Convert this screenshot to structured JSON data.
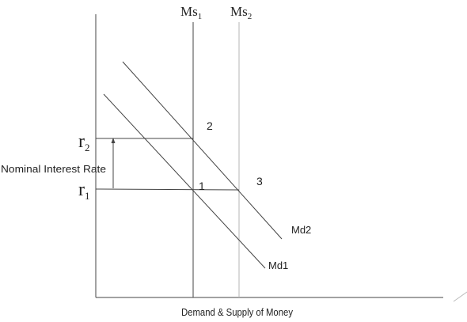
{
  "diagram": {
    "supply_curves": [
      {
        "label_main": "Ms",
        "label_sub": "1"
      },
      {
        "label_main": "Ms",
        "label_sub": "2"
      }
    ],
    "demand_curves": [
      {
        "label": "Md1"
      },
      {
        "label": "Md2"
      }
    ],
    "rates": [
      {
        "label_main": "r",
        "label_sub": "2"
      },
      {
        "label_main": "r",
        "label_sub": "1"
      }
    ],
    "points": [
      "1",
      "2",
      "3"
    ],
    "y_axis_label": "Nominal Interest Rate",
    "x_axis_label": "Demand & Supply of Money",
    "colors": {
      "ink": "#222222",
      "secondary": "#9a9a9a"
    }
  }
}
